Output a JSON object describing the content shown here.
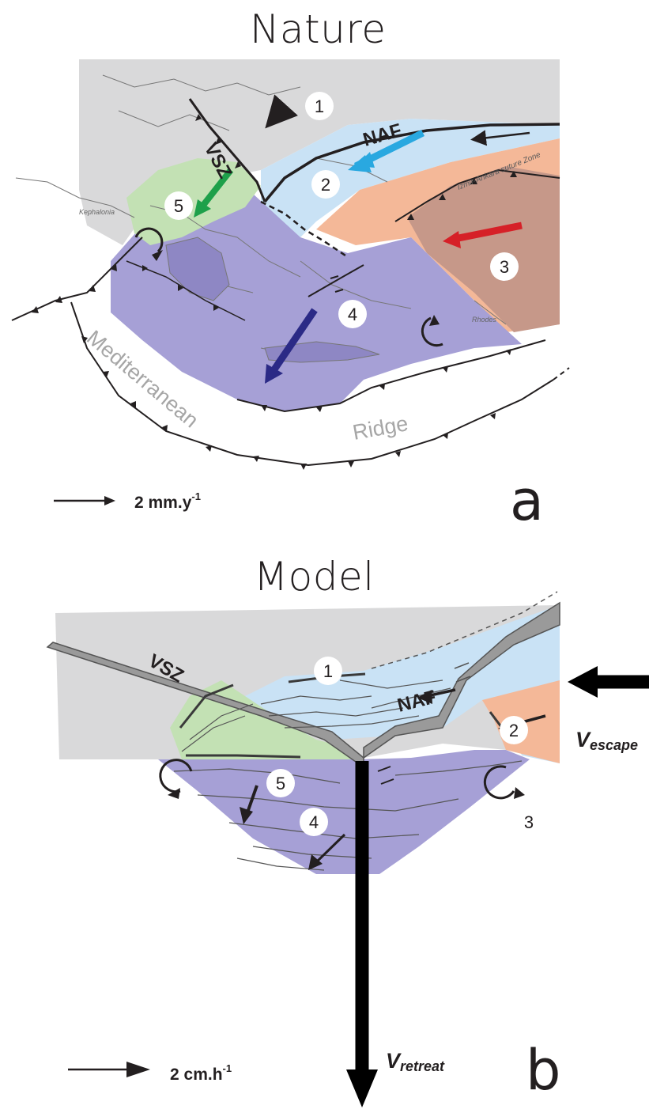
{
  "panel_a": {
    "title": "Nature",
    "letter": "a",
    "scale": {
      "value": "2 mm.y",
      "exponent": "-1"
    },
    "labels": {
      "vsz": "VSZ",
      "naf": "NAF",
      "suture": "Izmir-Ankara suture Zone",
      "mediterranean": "Mediterranean",
      "ridge": "Ridge",
      "kephalonia": "Kephalonia",
      "rhodes": "Rhodes"
    },
    "blocks": [
      "1",
      "2",
      "3",
      "4",
      "5"
    ]
  },
  "panel_b": {
    "title": "Model",
    "letter": "b",
    "scale": {
      "value": "2 cm.h",
      "exponent": "-1"
    },
    "labels": {
      "vsz": "VSZ",
      "naf": "NAF",
      "v_escape_main": "V",
      "v_escape_sub": "escape",
      "v_retreat_main": "V",
      "v_retreat_sub": "retreat"
    },
    "blocks": [
      "1",
      "2",
      "3",
      "4",
      "5"
    ]
  },
  "colors": {
    "block1_grey": "#d9d9da",
    "block2_blue": "#c9e2f5",
    "block3_salmon": "#f4b898",
    "block3_dark": "#c69889",
    "block4_purple": "#a6a0d6",
    "block5_green": "#c3e1b4",
    "arrow_blue": "#29a8e0",
    "arrow_red": "#d62027",
    "arrow_green": "#1ea04a",
    "arrow_navy": "#2b2a86",
    "ink": "#231f20"
  }
}
